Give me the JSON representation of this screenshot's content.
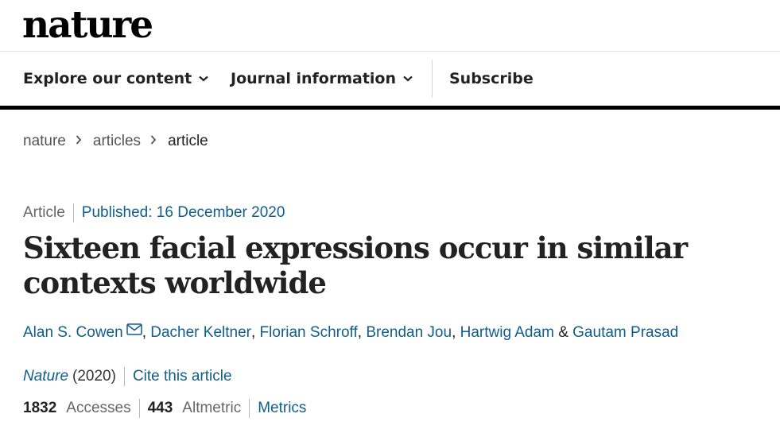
{
  "site": {
    "logo": "nature"
  },
  "nav": {
    "explore": "Explore our content",
    "journal_info": "Journal information",
    "subscribe": "Subscribe",
    "dropdown_icon": "chevron-down-icon"
  },
  "breadcrumb": {
    "items": [
      "nature",
      "articles",
      "article"
    ],
    "separator_icon": "chevron-right-icon"
  },
  "article": {
    "type": "Article",
    "published": "Published: 16 December 2020",
    "title": "Sixteen facial expressions occur in similar contexts worldwide",
    "authors": [
      "Alan S. Cowen",
      "Dacher Keltner",
      "Florian Schroff",
      "Brendan Jou",
      "Hartwig Adam",
      "Gautam Prasad"
    ],
    "comma": ",",
    "ampersand": "&",
    "corresponding_icon": "envelope-icon",
    "journal": "Nature",
    "year": "(2020)",
    "cite": "Cite this article",
    "accesses_count": "1832",
    "accesses_label": "Accesses",
    "altmetric_count": "443",
    "altmetric_label": "Altmetric",
    "metrics_link": "Metrics"
  },
  "colors": {
    "link": "#0f5e8c",
    "text": "#222222",
    "muted": "#666666",
    "rule": "#000000"
  }
}
